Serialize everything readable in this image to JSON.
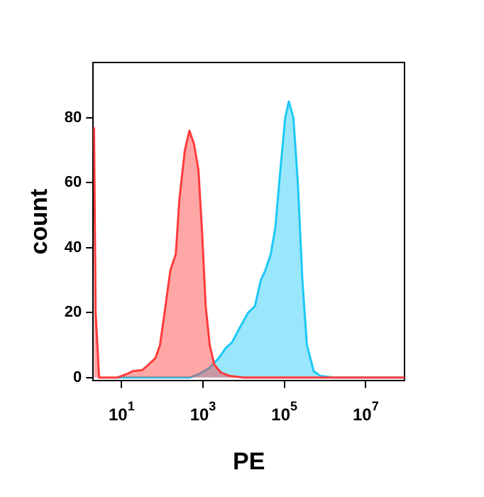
{
  "chart_data": {
    "type": "area",
    "xlabel": "PE",
    "ylabel": "count",
    "log": "x",
    "xlim": [
      2,
      90000000
    ],
    "ylim": [
      -1,
      97
    ],
    "xticks": [
      {
        "value": 10,
        "label": "10$^{1}$"
      },
      {
        "value": 1000,
        "label": "10$^{3}$"
      },
      {
        "value": 100000,
        "label": "10$^{5}$"
      },
      {
        "value": 10000000,
        "label": "10$^{7}$"
      }
    ],
    "yticks": [
      0,
      20,
      40,
      60,
      80
    ],
    "grid": false,
    "legend": false,
    "marker": "none",
    "line_style": "solid",
    "series": [
      {
        "color": "#ff3b3b",
        "x": [
          2.1,
          2.3,
          2.8,
          7.7,
          12.9,
          19,
          32,
          46,
          68,
          88,
          114,
          158,
          215,
          264,
          359,
          464,
          599,
          774,
          950,
          1166,
          1468,
          1896,
          2783,
          4642,
          10000,
          90000000
        ],
        "values": [
          77,
          20,
          0,
          0,
          1,
          2,
          2.3,
          4,
          6,
          10,
          20,
          33,
          38,
          55,
          70,
          76,
          72,
          64,
          45,
          22,
          10,
          4,
          1.5,
          0.5,
          0,
          0
        ]
      },
      {
        "color": "#1ec8f5",
        "x": [
          7.7,
          464,
          774,
          1468,
          2448,
          3594,
          5275,
          7743,
          12915,
          18957,
          26400,
          34100,
          46400,
          59900,
          77400,
          105000,
          129000,
          167000,
          215000,
          278000,
          359000,
          527000,
          774000,
          1670000,
          90000000
        ],
        "values": [
          0,
          0,
          1,
          3,
          6,
          9,
          11,
          15,
          20,
          22,
          30,
          33,
          38,
          46,
          62,
          80,
          85,
          80,
          60,
          30,
          10,
          2,
          0.5,
          0,
          0
        ]
      }
    ]
  }
}
